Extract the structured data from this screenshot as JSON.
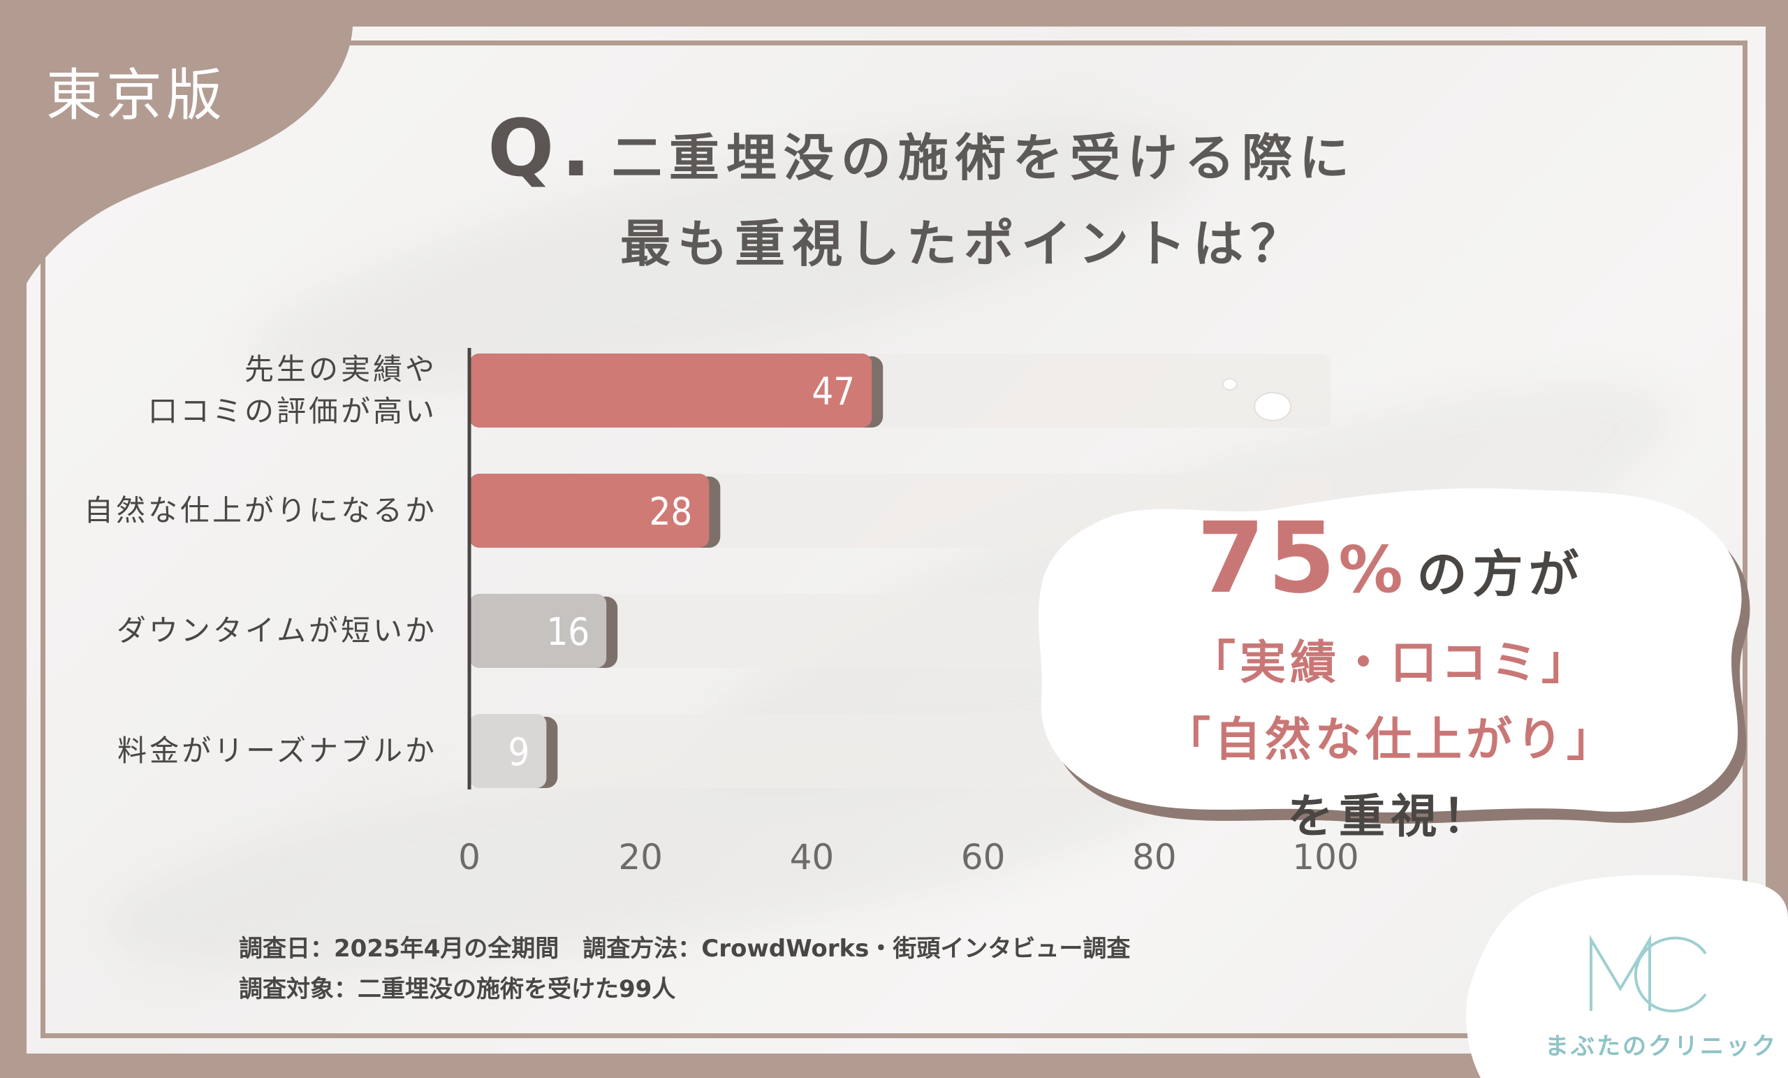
{
  "region_tag": "東京版",
  "title": {
    "q_mark": "Q.",
    "line1": "二重埋没の施術を受ける際に",
    "line2": "最も重視したポイントは？"
  },
  "chart_data": {
    "type": "bar",
    "orientation": "horizontal",
    "categories": [
      [
        "先生の実績や",
        "口コミの評価が高い"
      ],
      [
        "自然な仕上がりになるか"
      ],
      [
        "ダウンタイムが短いか"
      ],
      [
        "料金がリーズナブルか"
      ]
    ],
    "values": [
      47,
      28,
      16,
      9
    ],
    "xlim": [
      0,
      100
    ],
    "xticks": [
      "0",
      "20",
      "40",
      "60",
      "80",
      "100"
    ],
    "colors": [
      "#cf7a75",
      "#cf7a75",
      "#c5c2c0",
      "#d9d7d5"
    ],
    "track_color": "#efecea",
    "grid": false,
    "legend": "none"
  },
  "callout": {
    "number": "75",
    "percent": "%",
    "suffix": "の方が",
    "line2": "「実績・口コミ」",
    "line3": "「自然な仕上がり」",
    "line4": "を重視！"
  },
  "notes": {
    "line1": "調査日：2025年4月の全期間　調査方法：CrowdWorks・街頭インタビュー調査",
    "line2": "調査対象：二重埋没の施術を受けた99人"
  },
  "logo": {
    "text": "まぶたのクリニック",
    "color": "#8ec3c6"
  }
}
